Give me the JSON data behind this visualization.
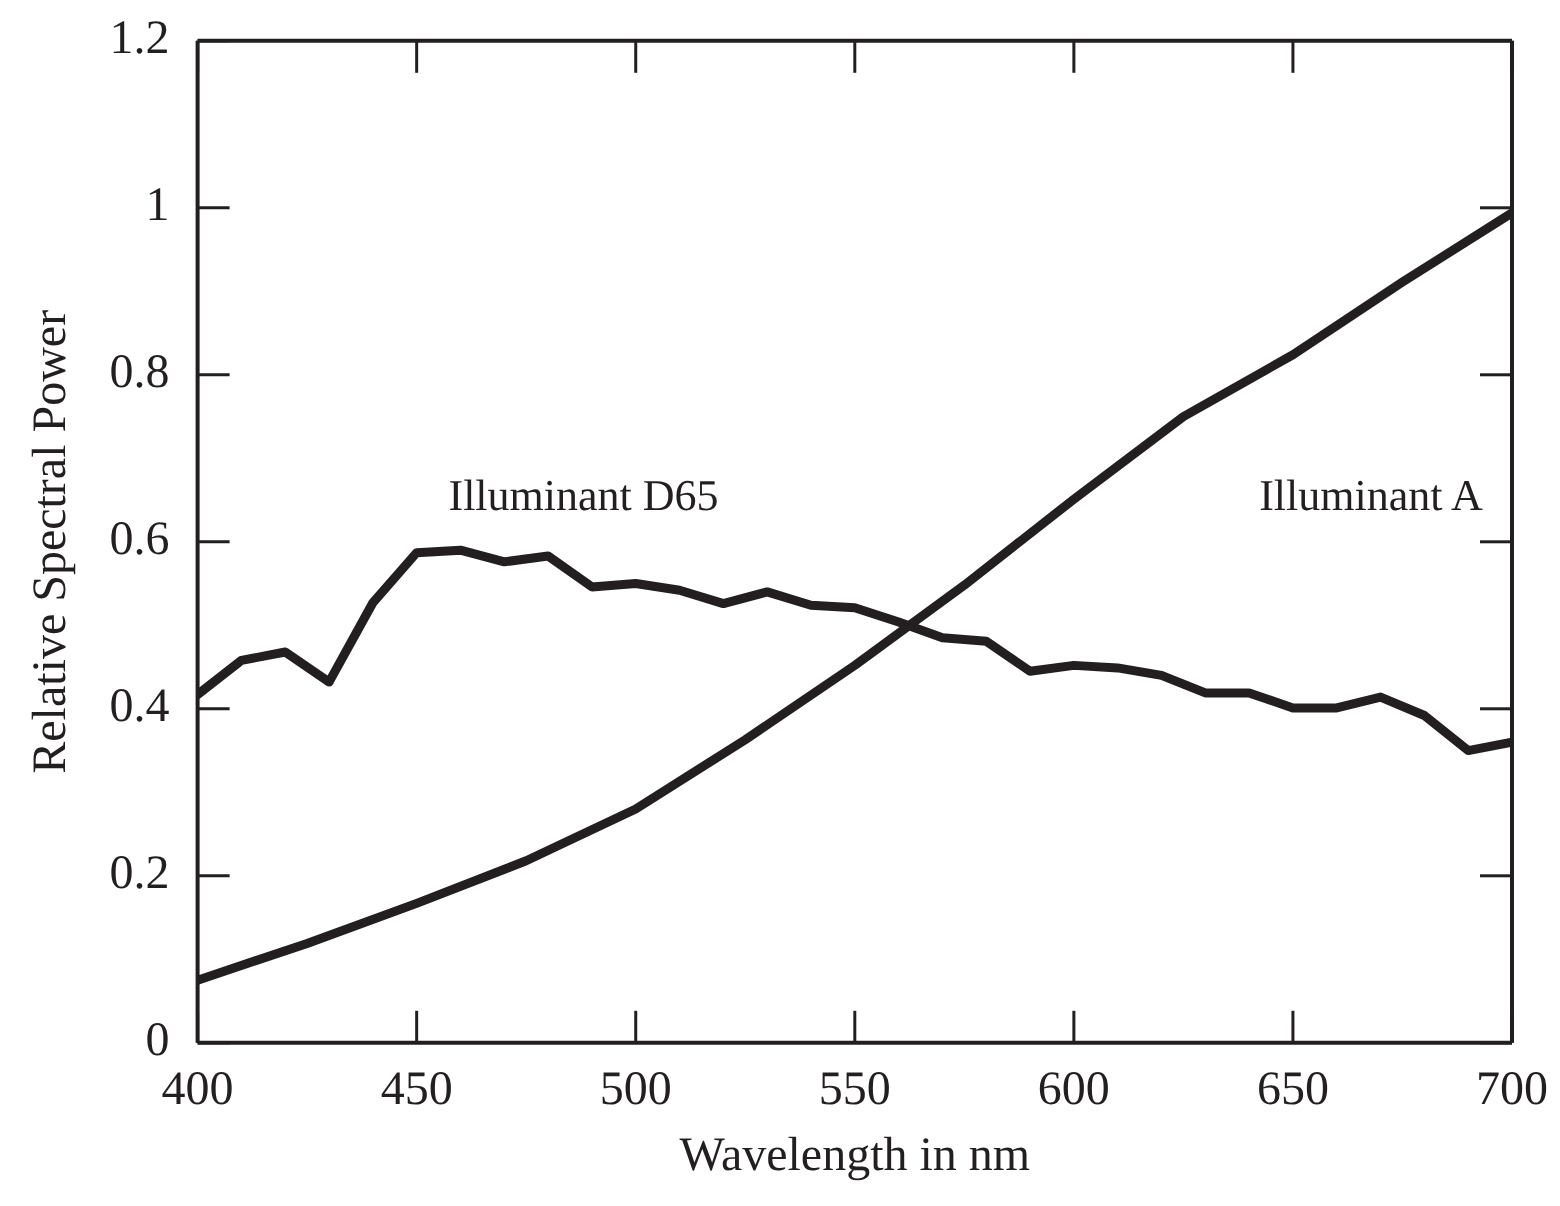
{
  "chart_data": {
    "type": "line",
    "xlabel": "Wavelength in nm",
    "ylabel": "Relative Spectral Power",
    "xlim": [
      400,
      700
    ],
    "xticks": [
      400,
      450,
      500,
      550,
      600,
      650,
      700
    ],
    "ylim": [
      0,
      1.2
    ],
    "yticks": [
      0,
      0.2,
      0.4,
      0.6,
      0.8,
      1,
      1.2
    ],
    "grid": false,
    "legend": false,
    "marker": "none",
    "line_style": "solid",
    "series": [
      {
        "name": "Illuminant D65",
        "color": "#231f20",
        "x": [
          400,
          410,
          420,
          430,
          440,
          450,
          460,
          470,
          480,
          490,
          500,
          510,
          520,
          530,
          540,
          550,
          560,
          570,
          580,
          590,
          600,
          610,
          620,
          630,
          640,
          650,
          660,
          670,
          680,
          690,
          700
        ],
        "values": [
          0.417,
          0.458,
          0.468,
          0.432,
          0.527,
          0.587,
          0.59,
          0.576,
          0.583,
          0.546,
          0.55,
          0.542,
          0.526,
          0.54,
          0.524,
          0.521,
          0.504,
          0.485,
          0.481,
          0.445,
          0.452,
          0.449,
          0.44,
          0.419,
          0.419,
          0.401,
          0.401,
          0.414,
          0.392,
          0.35,
          0.36
        ]
      },
      {
        "name": "Illuminant A",
        "color": "#231f20",
        "x": [
          400,
          425,
          450,
          475,
          500,
          525,
          550,
          575,
          600,
          625,
          650,
          675,
          700
        ],
        "values": [
          0.075,
          0.119,
          0.167,
          0.218,
          0.28,
          0.363,
          0.452,
          0.548,
          0.651,
          0.75,
          0.824,
          0.911,
          0.994
        ]
      }
    ]
  }
}
